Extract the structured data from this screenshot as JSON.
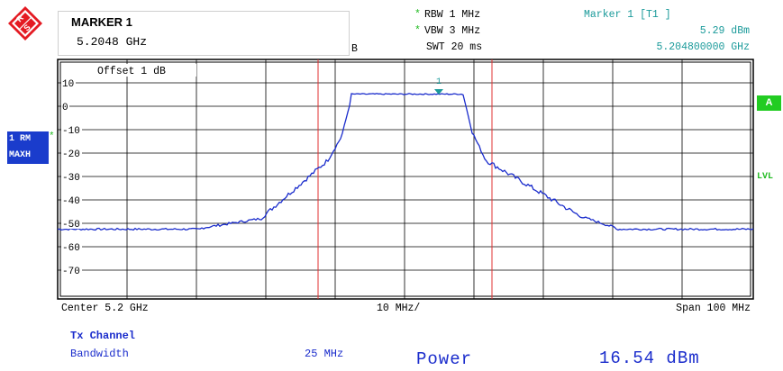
{
  "marker_box": {
    "title": "MARKER 1",
    "value": "5.2048 GHz"
  },
  "header": {
    "rbw": "RBW 1 MHz",
    "vbw": "VBW 3 MHz",
    "swt": "SWT 20 ms",
    "marker_label": "Marker 1 [T1 ]",
    "marker_level": "5.29 dBm",
    "marker_freq": "5.204800000 GHz",
    "partial_glyph": "B",
    "star": "*"
  },
  "plot": {
    "offset_label": "Offset  1 dB",
    "y_ticks": [
      "10",
      "0",
      "-10",
      "-20",
      "-30",
      "-40",
      "-50",
      "-60",
      "-70"
    ],
    "marker_number": "1",
    "center": "Center 5.2 GHz",
    "div": "10 MHz/",
    "span": "Span 100 MHz"
  },
  "side": {
    "badge_a": "A",
    "trace_mode_1": "1 RM",
    "trace_mode_2": "MAXH",
    "lvl": "LVL",
    "star": "*"
  },
  "results": {
    "tx_channel": "Tx Channel",
    "bandwidth_label": "Bandwidth",
    "bandwidth_value": "25 MHz",
    "power_label": "Power",
    "power_value": "16.54 dBm"
  },
  "colors": {
    "trace": "#1a2ccc",
    "channel_lines": "#e03030",
    "marker": "#1a9a9a",
    "accent_green": "#22cc22",
    "badge_blue": "#1a3ccc"
  }
}
